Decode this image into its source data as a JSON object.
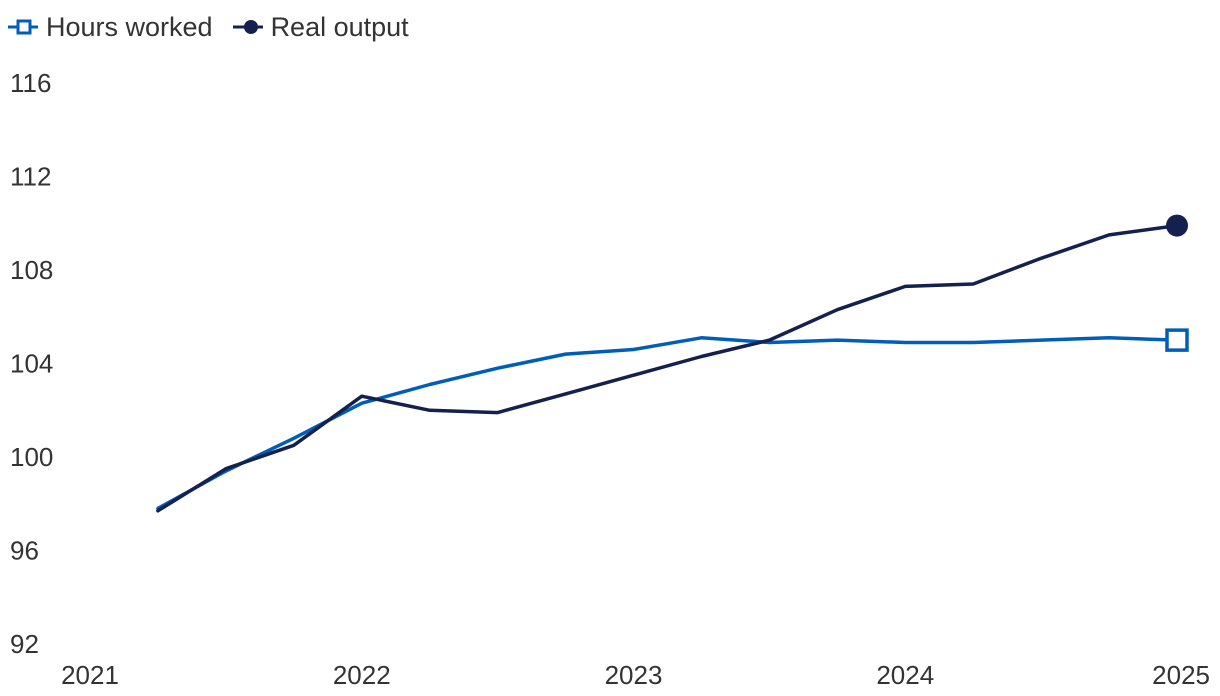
{
  "chart_data": {
    "type": "line",
    "title": "",
    "xlabel": "",
    "ylabel": "",
    "xlim": [
      2021,
      2025
    ],
    "ylim": [
      92,
      116
    ],
    "x_ticks": [
      "2021",
      "2022",
      "2023",
      "2024",
      "2025"
    ],
    "y_ticks": [
      "92",
      "96",
      "100",
      "104",
      "108",
      "112",
      "116"
    ],
    "grid": false,
    "legend_position": "top-left",
    "x": [
      "2021-Q2",
      "2021-Q3",
      "2021-Q4",
      "2022-Q1",
      "2022-Q2",
      "2022-Q3",
      "2022-Q4",
      "2023-Q1",
      "2023-Q2",
      "2023-Q3",
      "2023-Q4",
      "2024-Q1",
      "2024-Q2",
      "2024-Q3",
      "2024-Q4",
      "2025-Q1"
    ],
    "series": [
      {
        "name": "Hours worked",
        "color": "#005eb8",
        "marker": "hollow-square",
        "values": [
          97.8,
          99.4,
          100.8,
          102.3,
          103.1,
          103.8,
          104.4,
          104.6,
          105.1,
          104.9,
          105.0,
          104.9,
          104.9,
          105.0,
          105.1,
          105.0
        ]
      },
      {
        "name": "Real output",
        "color": "#14214f",
        "marker": "filled-circle",
        "values": [
          97.7,
          99.5,
          100.5,
          102.6,
          102.0,
          101.9,
          102.7,
          103.5,
          104.3,
          105.0,
          106.3,
          107.3,
          107.4,
          108.5,
          109.5,
          109.9
        ]
      }
    ]
  }
}
